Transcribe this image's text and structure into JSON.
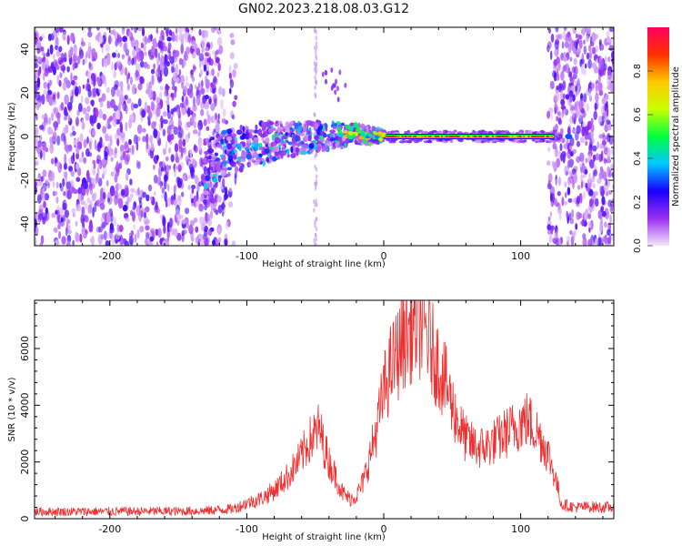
{
  "figure": {
    "title": "GN02.2023.218.08.03.G12"
  },
  "chart_data": [
    {
      "type": "heatmap",
      "xlabel": "Height of straight line (km)",
      "ylabel": "Frequency (Hz)",
      "xlim": [
        -255,
        168
      ],
      "ylim": [
        -50,
        50
      ],
      "x_ticks": [
        -200,
        -100,
        0,
        100
      ],
      "x_tick_labels": [
        "-200",
        "-100",
        "0",
        "100"
      ],
      "y_ticks": [
        -40,
        -20,
        0,
        20,
        40
      ],
      "y_tick_labels": [
        "-40",
        "-20",
        "0",
        "20",
        "40"
      ],
      "colorbar": {
        "label": "Normalized spectral amplitude",
        "range": [
          0,
          1
        ],
        "ticks": [
          0.0,
          0.2,
          0.4,
          0.6,
          0.8
        ],
        "tick_labels": [
          "0.0",
          "0.2",
          "0.4",
          "0.6",
          "0.8"
        ],
        "colors": [
          "#f2e6fb",
          "#9a2ff0",
          "#1a00ff",
          "#00c8ff",
          "#00ff40",
          "#c8ff00",
          "#ffc800",
          "#ff3000",
          "#ff0060"
        ]
      },
      "features": {
        "noise_left_x": [
          -255,
          -120
        ],
        "noise_right_x": [
          125,
          168
        ],
        "ridge": [
          {
            "x": -130,
            "f": -14
          },
          {
            "x": -110,
            "f": -6
          },
          {
            "x": -80,
            "f": -2
          },
          {
            "x": -50,
            "f": 0
          },
          {
            "x": -20,
            "f": 1
          },
          {
            "x": 0,
            "f": 0
          },
          {
            "x": 60,
            "f": 0
          },
          {
            "x": 120,
            "f": 0
          }
        ],
        "strong_band_x": [
          0,
          125
        ]
      }
    },
    {
      "type": "line",
      "xlabel": "Height of straight line (km)",
      "ylabel": "SNR (10 * v/v)",
      "xlim": [
        -255,
        168
      ],
      "ylim": [
        0,
        7700
      ],
      "x_ticks": [
        -200,
        -100,
        0,
        100
      ],
      "x_tick_labels": [
        "-200",
        "-100",
        "0",
        "100"
      ],
      "y_ticks": [
        0,
        2000,
        4000,
        6000
      ],
      "y_tick_labels": [
        "0",
        "2000",
        "4000",
        "6000"
      ],
      "series": [
        {
          "color": "#f03030",
          "x": [
            -255,
            -220,
            -180,
            -150,
            -130,
            -110,
            -100,
            -90,
            -80,
            -70,
            -60,
            -55,
            -50,
            -47,
            -45,
            -40,
            -35,
            -30,
            -25,
            -20,
            -15,
            -10,
            -5,
            0,
            5,
            10,
            15,
            20,
            25,
            30,
            35,
            40,
            45,
            50,
            55,
            60,
            65,
            70,
            75,
            80,
            85,
            90,
            95,
            100,
            105,
            110,
            115,
            120,
            125,
            130,
            140,
            150,
            160,
            168
          ],
          "y": [
            250,
            250,
            260,
            260,
            280,
            350,
            550,
            700,
            1000,
            1500,
            2200,
            2700,
            3000,
            3200,
            2800,
            2000,
            1500,
            900,
            700,
            800,
            1300,
            2200,
            3200,
            4500,
            5300,
            5800,
            6400,
            6700,
            6900,
            6700,
            6000,
            5400,
            4800,
            4000,
            3300,
            2800,
            2600,
            2500,
            2550,
            2700,
            2850,
            3050,
            3200,
            3400,
            3500,
            3200,
            2800,
            2300,
            1500,
            500,
            400,
            420,
            400,
            400
          ]
        }
      ]
    }
  ]
}
